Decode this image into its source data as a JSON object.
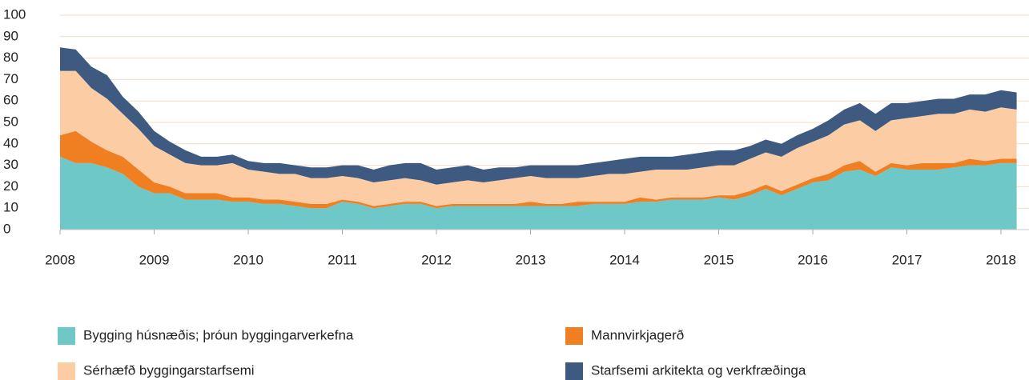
{
  "chart_data": {
    "type": "stacked-area",
    "categories": [
      "2008",
      null,
      null,
      null,
      null,
      null,
      "2009",
      null,
      null,
      null,
      null,
      null,
      "2010",
      null,
      null,
      null,
      null,
      null,
      "2011",
      null,
      null,
      null,
      null,
      null,
      "2012",
      null,
      null,
      null,
      null,
      null,
      "2013",
      null,
      null,
      null,
      null,
      null,
      "2014",
      null,
      null,
      null,
      null,
      null,
      "2015",
      null,
      null,
      null,
      null,
      null,
      "2016",
      null,
      null,
      null,
      null,
      null,
      "2017",
      null,
      null,
      null,
      null,
      null,
      "2018",
      null
    ],
    "ylim": [
      0,
      100
    ],
    "yticks": [
      0,
      10,
      20,
      30,
      40,
      50,
      60,
      70,
      80,
      90,
      100
    ],
    "grid": true,
    "series": [
      {
        "name": "Bygging húsnæðis; þróun byggingarverkefna",
        "color": "#6ec8c8",
        "values": [
          34,
          31,
          31,
          29,
          26,
          20,
          17,
          17,
          14,
          14,
          14,
          13,
          13,
          12,
          12,
          11,
          10,
          10,
          13,
          12,
          10,
          11,
          12,
          12,
          10,
          11,
          11,
          11,
          11,
          11,
          11,
          11,
          11,
          11,
          12,
          12,
          12,
          13,
          13,
          14,
          14,
          14,
          15,
          14,
          16,
          19,
          16,
          19,
          22,
          23,
          27,
          28,
          25,
          29,
          28,
          28,
          28,
          29,
          30,
          30,
          31,
          31
        ]
      },
      {
        "name": "Mannvirkjagerð",
        "color": "#f07f22",
        "values": [
          10,
          15,
          10,
          8,
          8,
          8,
          5,
          3,
          3,
          3,
          3,
          2,
          2,
          2,
          2,
          2,
          2,
          2,
          1,
          1,
          1,
          1,
          1,
          1,
          1,
          1,
          1,
          1,
          1,
          1,
          2,
          1,
          1,
          2,
          1,
          1,
          1,
          2,
          1,
          1,
          1,
          1,
          1,
          2,
          2,
          2,
          2,
          2,
          2,
          3,
          3,
          4,
          2,
          2,
          2,
          3,
          3,
          2,
          3,
          2,
          2,
          2
        ]
      },
      {
        "name": "Sérhæfð byggingarstarfsemi",
        "color": "#fcccA5",
        "values": [
          30,
          28,
          25,
          24,
          20,
          19,
          17,
          15,
          14,
          13,
          13,
          16,
          13,
          13,
          12,
          13,
          12,
          12,
          11,
          11,
          11,
          11,
          11,
          10,
          10,
          10,
          11,
          10,
          11,
          12,
          12,
          12,
          12,
          11,
          12,
          13,
          13,
          12,
          14,
          13,
          13,
          14,
          14,
          14,
          15,
          15,
          16,
          17,
          17,
          18,
          19,
          19,
          19,
          20,
          22,
          22,
          23,
          23,
          23,
          23,
          24,
          23
        ]
      },
      {
        "name": "Starfsemi arkitekta og verkfræðinga",
        "color": "#3e5a80",
        "values": [
          11,
          10,
          10,
          11,
          8,
          8,
          7,
          6,
          6,
          4,
          4,
          4,
          4,
          4,
          5,
          4,
          5,
          5,
          5,
          6,
          6,
          7,
          7,
          8,
          7,
          7,
          7,
          6,
          6,
          5,
          5,
          6,
          6,
          6,
          6,
          6,
          7,
          7,
          6,
          6,
          7,
          7,
          7,
          7,
          6,
          6,
          6,
          6,
          6,
          7,
          7,
          8,
          8,
          8,
          7,
          7,
          7,
          7,
          7,
          8,
          8,
          8
        ]
      }
    ]
  }
}
